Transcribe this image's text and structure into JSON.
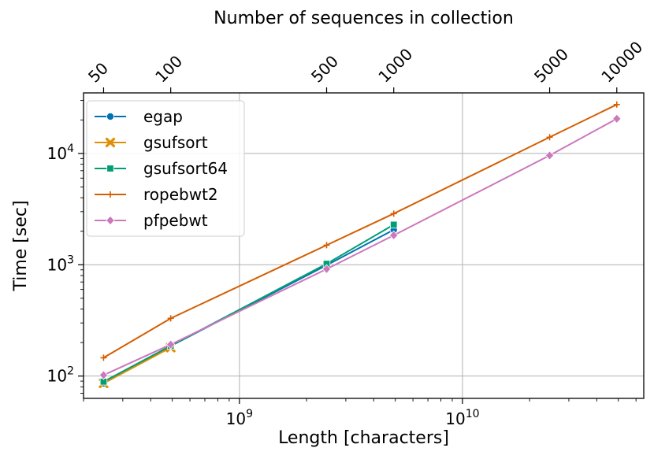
{
  "chart_data": {
    "type": "line",
    "xlabel": "Length [characters]",
    "ylabel": "Time [sec]",
    "top_xlabel": "Number of sequences in collection",
    "x_scale": "log",
    "y_scale": "log",
    "xlim": [
      200000000,
      65000000000
    ],
    "ylim": [
      63,
      35000
    ],
    "grid": true,
    "legend_position": "top-left",
    "x_ticks": [
      {
        "value": 1000000000,
        "base": "10",
        "exp": "9"
      },
      {
        "value": 10000000000,
        "base": "10",
        "exp": "10"
      }
    ],
    "y_ticks": [
      {
        "value": 100,
        "base": "10",
        "exp": "2"
      },
      {
        "value": 1000,
        "base": "10",
        "exp": "3"
      },
      {
        "value": 10000,
        "base": "10",
        "exp": "4"
      }
    ],
    "top_ticks": [
      {
        "value": 246000000,
        "label": "50"
      },
      {
        "value": 492000000,
        "label": "100"
      },
      {
        "value": 2460000000,
        "label": "500"
      },
      {
        "value": 4920000000,
        "label": "1000"
      },
      {
        "value": 24600000000,
        "label": "5000"
      },
      {
        "value": 49200000000,
        "label": "10000"
      }
    ],
    "series": [
      {
        "name": "egap",
        "color": "#0173b2",
        "marker": "circle",
        "points": [
          [
            246000000,
            86
          ],
          [
            492000000,
            186
          ],
          [
            2460000000,
            990
          ],
          [
            4920000000,
            2060
          ]
        ]
      },
      {
        "name": "gsufsort",
        "color": "#de8f05",
        "marker": "x",
        "points": [
          [
            246000000,
            86
          ],
          [
            492000000,
            180
          ]
        ]
      },
      {
        "name": "gsufsort64",
        "color": "#029e73",
        "marker": "square",
        "points": [
          [
            246000000,
            89
          ],
          [
            492000000,
            187
          ],
          [
            2460000000,
            1020
          ],
          [
            4920000000,
            2290
          ]
        ]
      },
      {
        "name": "ropebwt2",
        "color": "#d55e00",
        "marker": "plus",
        "points": [
          [
            246000000,
            146
          ],
          [
            492000000,
            330
          ],
          [
            2460000000,
            1500
          ],
          [
            4920000000,
            2880
          ],
          [
            24600000000,
            14000
          ],
          [
            49200000000,
            27500
          ]
        ]
      },
      {
        "name": "pfpebwt",
        "color": "#cc78bc",
        "marker": "diamond",
        "points": [
          [
            246000000,
            102
          ],
          [
            492000000,
            192
          ],
          [
            2460000000,
            915
          ],
          [
            4920000000,
            1840
          ],
          [
            24600000000,
            9600
          ],
          [
            49200000000,
            20500
          ]
        ]
      }
    ]
  }
}
